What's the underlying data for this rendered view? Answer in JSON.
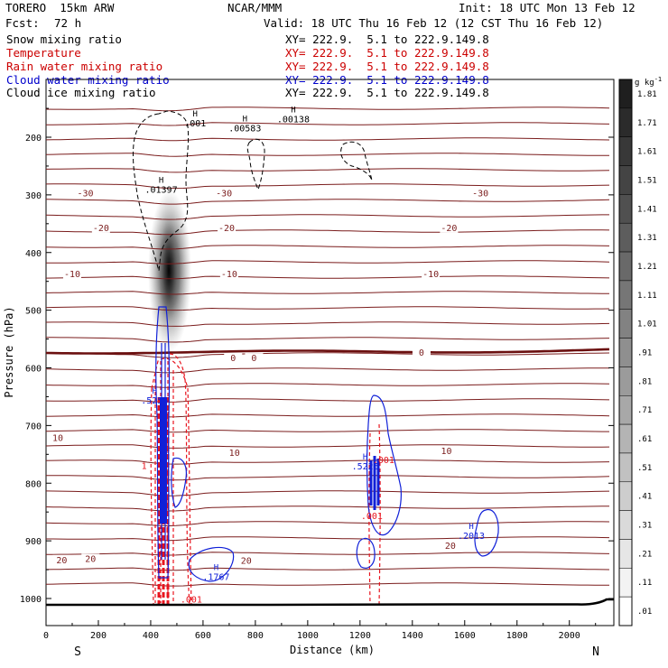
{
  "header": {
    "model": "TORERO  15km ARW",
    "center": "NCAR/MMM",
    "init": "Init: 18 UTC Mon 13 Feb 12",
    "fcst_label": "Fcst:",
    "fcst_value": "72 h",
    "valid": "Valid: 18 UTC Thu 16 Feb 12 (12 CST Thu 16 Feb 12)",
    "legend": [
      {
        "label": "Snow mixing ratio",
        "xy": "XY= 222.9.  5.1 to 222.9.149.8",
        "color": "#000000"
      },
      {
        "label": "Temperature",
        "xy": "XY= 222.9.  5.1 to 222.9.149.8",
        "color": "#cc0000"
      },
      {
        "label": "Rain water mixing ratio",
        "xy": "XY= 222.9.  5.1 to 222.9.149.8",
        "color": "#cc0000"
      },
      {
        "label": "Cloud water mixing ratio",
        "xy": "XY= 222.9.  5.1 to 222.9.149.8",
        "color": "#0000cc"
      },
      {
        "label": "Cloud ice mixing ratio",
        "xy": "XY= 222.9.  5.1 to 222.9.149.8",
        "color": "#000000"
      }
    ]
  },
  "colors": {
    "temperature": "#7a1c1c",
    "zero_isotherm": "#6b1010",
    "rain": "#e8141e",
    "cloud_water": "#1020d8",
    "ice": "#000000"
  },
  "chart_data": {
    "type": "contour",
    "xlabel": "Distance (km)",
    "ylabel": "Pressure (hPa)",
    "xlim": [
      0,
      2170
    ],
    "ylim": [
      1050,
      100
    ],
    "x_ticks": [
      0,
      200,
      400,
      600,
      800,
      1000,
      1200,
      1400,
      1600,
      1800,
      2000
    ],
    "y_ticks": [
      200,
      300,
      400,
      500,
      600,
      700,
      800,
      900,
      1000
    ],
    "direction_left": "S",
    "direction_right": "N",
    "colorbar": {
      "unit": "g kg",
      "unit_exp": "-1",
      "levels": [
        "1.81",
        "1.71",
        "1.61",
        "1.51",
        "1.41",
        "1.31",
        "1.21",
        "1.11",
        "1.01",
        ".91",
        ".81",
        ".71",
        ".61",
        ".51",
        ".41",
        ".31",
        ".21",
        ".11",
        ".01"
      ]
    },
    "temperature_contours_c": [
      -30,
      -20,
      -10,
      0,
      10,
      20
    ],
    "temperature_labels": [
      {
        "text": "-30",
        "x": 150,
        "p": 301
      },
      {
        "text": "-30",
        "x": 680,
        "p": 301
      },
      {
        "text": "-30",
        "x": 1660,
        "p": 301
      },
      {
        "text": "-20",
        "x": 210,
        "p": 361
      },
      {
        "text": "-20",
        "x": 690,
        "p": 361
      },
      {
        "text": "-20",
        "x": 1540,
        "p": 361
      },
      {
        "text": "-10",
        "x": 100,
        "p": 441
      },
      {
        "text": "-10",
        "x": 700,
        "p": 441
      },
      {
        "text": "-10",
        "x": 1470,
        "p": 441
      },
      {
        "text": "0",
        "x": 715,
        "p": 587
      },
      {
        "text": "0",
        "x": 795,
        "p": 587
      },
      {
        "text": "0",
        "x": 1435,
        "p": 577
      },
      {
        "text": "10",
        "x": 45,
        "p": 725
      },
      {
        "text": "10",
        "x": 720,
        "p": 751
      },
      {
        "text": "10",
        "x": 1530,
        "p": 748
      },
      {
        "text": "20",
        "x": 60,
        "p": 937
      },
      {
        "text": "20",
        "x": 170,
        "p": 935
      },
      {
        "text": "20",
        "x": 765,
        "p": 938
      },
      {
        "text": "20",
        "x": 1545,
        "p": 912
      }
    ],
    "maxima_labels": [
      {
        "h": "H",
        "value": ".01397",
        "x": 440,
        "p": 296,
        "color": "#000000"
      },
      {
        "h": "H",
        "value": ".001",
        "x": 570,
        "p": 181,
        "color": "#000000"
      },
      {
        "h": "H",
        "value": ".00583",
        "x": 760,
        "p": 190,
        "color": "#000000"
      },
      {
        "h": "H",
        "value": ".00138",
        "x": 945,
        "p": 174,
        "color": "#000000"
      },
      {
        "h": "H",
        "value": ".5255",
        "x": 415,
        "p": 662,
        "color": "#1020d8"
      },
      {
        "h": "H",
        "value": ".5226",
        "x": 1220,
        "p": 776,
        "color": "#1020d8"
      },
      {
        "h": "H",
        "value": ".1767",
        "x": 650,
        "p": 968,
        "color": "#1020d8"
      },
      {
        "h": "H",
        "value": ".2013",
        "x": 1625,
        "p": 897,
        "color": "#1020d8"
      }
    ],
    "rain_labels": [
      {
        "text": "1",
        "x": 375,
        "p": 775
      },
      {
        "text": ".001",
        "x": 1290,
        "p": 765
      },
      {
        "text": ".001",
        "x": 1245,
        "p": 862
      },
      {
        "text": ".001",
        "x": 555,
        "p": 1007
      }
    ]
  }
}
